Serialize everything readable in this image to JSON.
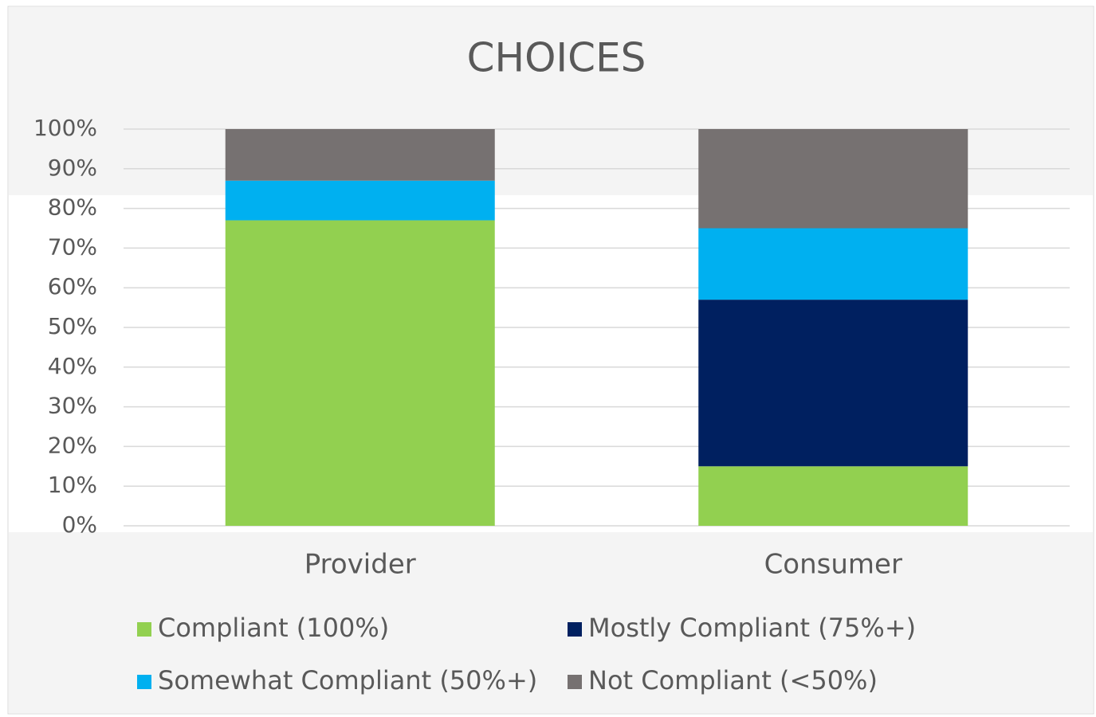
{
  "chart_data": {
    "type": "stacked_bar",
    "title": "CHOICES",
    "categories": [
      "Provider",
      "Consumer"
    ],
    "series": [
      {
        "name": "Compliant (100%)",
        "color": "#92d050",
        "values": [
          77,
          15
        ]
      },
      {
        "name": "Mostly Compliant (75%+)",
        "color": "#002060",
        "values": [
          0,
          42
        ]
      },
      {
        "name": "Somewhat Compliant (50%+)",
        "color": "#00b0f0",
        "values": [
          10,
          18
        ]
      },
      {
        "name": "Not Compliant (<50%)",
        "color": "#767171",
        "values": [
          13,
          25
        ]
      }
    ],
    "ylim": [
      0,
      100
    ],
    "yticks": [
      {
        "value": 0,
        "label": "0%"
      },
      {
        "value": 10,
        "label": "10%"
      },
      {
        "value": 20,
        "label": "20%"
      },
      {
        "value": 30,
        "label": "30%"
      },
      {
        "value": 40,
        "label": "40%"
      },
      {
        "value": 50,
        "label": "50%"
      },
      {
        "value": 60,
        "label": "60%"
      },
      {
        "value": 70,
        "label": "70%"
      },
      {
        "value": 80,
        "label": "80%"
      },
      {
        "value": 90,
        "label": "90%"
      },
      {
        "value": 100,
        "label": "100%"
      }
    ],
    "grid": true,
    "legend": "bottom"
  }
}
